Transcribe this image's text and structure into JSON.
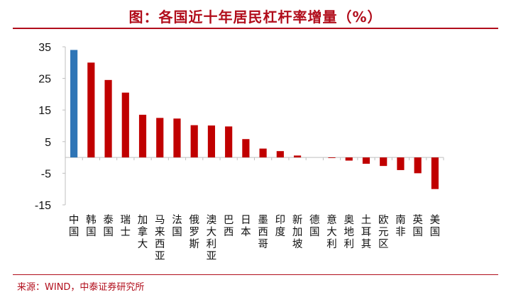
{
  "header": {
    "title": "图：各国近十年居民杠杆率增量（%）"
  },
  "footer": {
    "source": "来源：WIND，中泰证券研究所"
  },
  "colors": {
    "highlight": "#2e75b6",
    "bar": "#c00000",
    "accent": "#b10d1b"
  },
  "chart_data": {
    "type": "bar",
    "title": "图：各国近十年居民杠杆率增量（%）",
    "xlabel": "",
    "ylabel": "",
    "ylim": [
      -15,
      35
    ],
    "yticks": [
      35,
      25,
      15,
      5,
      -5,
      -15
    ],
    "grid": false,
    "legend": "none",
    "categories": [
      "中国",
      "韩国",
      "泰国",
      "瑞士",
      "加拿大",
      "马来西亚",
      "法国",
      "俄罗斯",
      "澳大利亚",
      "巴西",
      "日本",
      "墨西哥",
      "印度",
      "新加坡",
      "德国",
      "意大利",
      "奥地利",
      "土耳其",
      "欧元区",
      "南非",
      "英国",
      "美国"
    ],
    "values": [
      34,
      30,
      24.5,
      20.5,
      13.5,
      12.5,
      12.3,
      10.2,
      10.1,
      9.8,
      5.8,
      2.8,
      2.0,
      0.6,
      0.0,
      -0.2,
      -1.0,
      -2.0,
      -2.7,
      -4.0,
      -5.0,
      -10.0
    ],
    "highlight_index": 0
  }
}
